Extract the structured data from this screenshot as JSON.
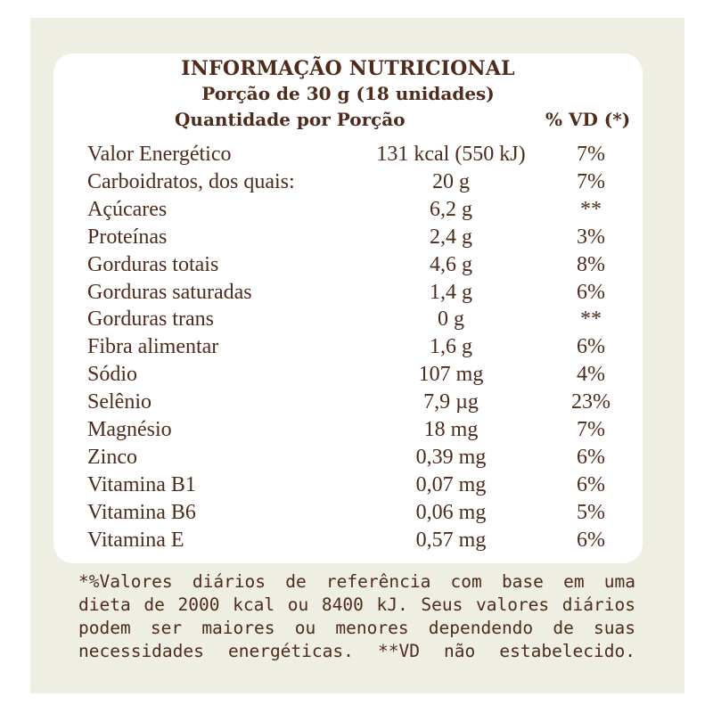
{
  "label": {
    "title": "INFORMAÇÃO NUTRICIONAL",
    "serving": "Porção de 30 g (18 unidades)",
    "col_quantity": "Quantidade por Porção",
    "col_vd": "% VD (*)",
    "rows": [
      {
        "name": "Valor Energético",
        "amount": "131 kcal (550 kJ)",
        "vd": "7%"
      },
      {
        "name": "Carboidratos, dos quais:",
        "amount": "20 g",
        "vd": "7%"
      },
      {
        "name": " Açúcares",
        "amount": "6,2 g",
        "vd": "**"
      },
      {
        "name": "Proteínas",
        "amount": "2,4 g",
        "vd": "3%"
      },
      {
        "name": "Gorduras totais",
        "amount": "4,6 g",
        "vd": "8%"
      },
      {
        "name": "Gorduras saturadas",
        "amount": "1,4 g",
        "vd": "6%"
      },
      {
        "name": "Gorduras trans",
        "amount": "0 g",
        "vd": "**"
      },
      {
        "name": "Fibra alimentar",
        "amount": "1,6 g",
        "vd": "6%"
      },
      {
        "name": "Sódio",
        "amount": "107 mg",
        "vd": "4%"
      },
      {
        "name": "Selênio",
        "amount": "7,9 µg",
        "vd": "23%"
      },
      {
        "name": "Magnésio",
        "amount": "18 mg",
        "vd": "7%"
      },
      {
        "name": "Zinco",
        "amount": "0,39 mg",
        "vd": "6%"
      },
      {
        "name": "Vitamina B1",
        "amount": "0,07 mg",
        "vd": "6%"
      },
      {
        "name": "Vitamina B6",
        "amount": "0,06 mg",
        "vd": "5%"
      },
      {
        "name": "Vitamina E",
        "amount": "0,57 mg",
        "vd": "6%"
      }
    ],
    "footnote_lines": [
      "*%Valores diários de referência com base em uma",
      "dieta de 2000 kcal ou 8400 kJ. Seus valores diários",
      "podem ser maiores ou menores dependendo de suas",
      "necessidades energéticas. **VD não estabelecido."
    ]
  },
  "colors": {
    "text": "#4e2b1b",
    "background": "#efeee3",
    "panel": "#ffffff"
  }
}
